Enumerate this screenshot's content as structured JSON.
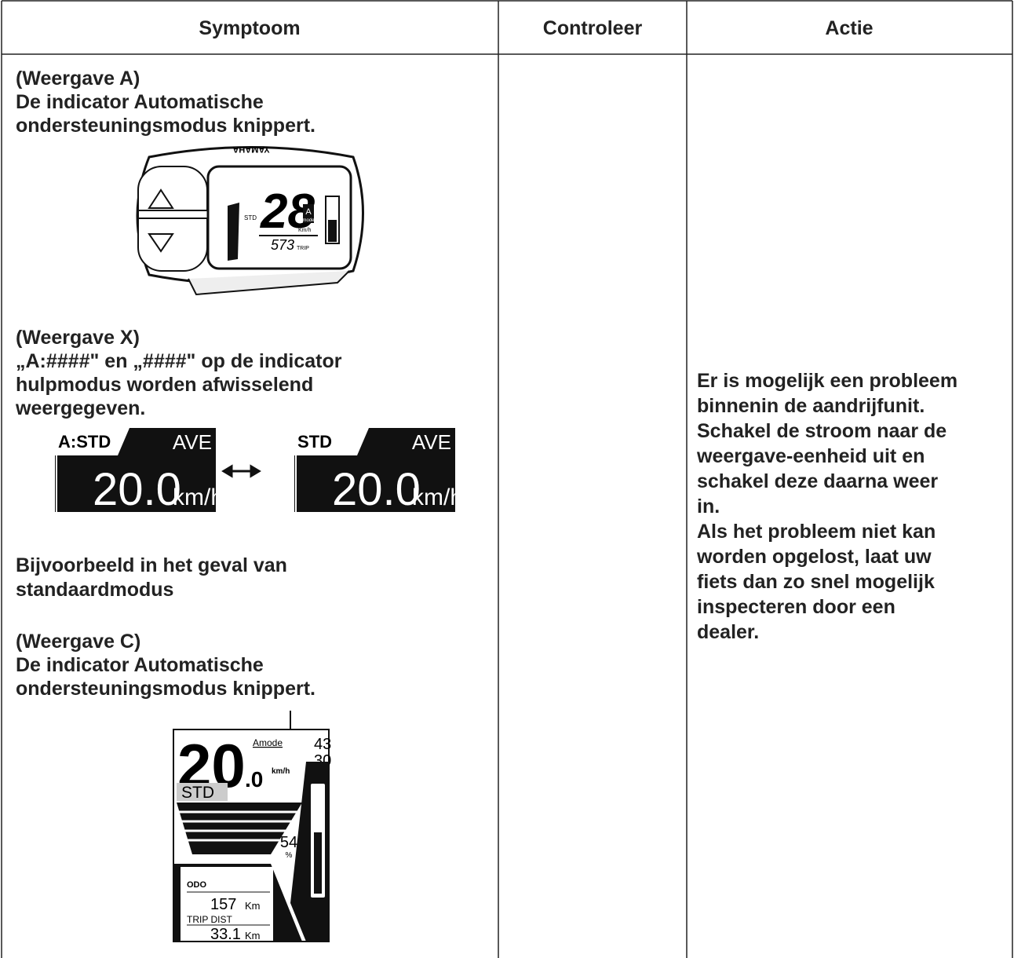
{
  "header": {
    "columns": [
      "Symptoom",
      "Controleer",
      "Actie"
    ]
  },
  "symptom": {
    "display_a": {
      "label": "(Weergave A)",
      "lines": [
        "De indicator Automatische",
        "ondersteuningsmodus knippert."
      ]
    },
    "display_x": {
      "label": "(Weergave X)",
      "lines": [
        "„A:####\" en „####\" op de indicator",
        "hulpmodus worden afwisselend",
        "weergegeven."
      ]
    },
    "example": {
      "lines": [
        "Bijvoorbeeld in het geval van",
        "standaardmodus"
      ]
    },
    "display_c": {
      "label": "(Weergave C)",
      "lines": [
        "De indicator Automatische",
        "ondersteuningsmodus knippert."
      ]
    }
  },
  "action": {
    "lines": [
      "Er is mogelijk een probleem",
      "binnenin de aandrijfunit.",
      "Schakel de stroom naar de",
      "weergave-eenheid uit en",
      "schakel deze daarna weer",
      "in.",
      "Als het probleem niet kan",
      "worden opgelost, laat uw",
      "fiets dan zo snel mogelijk",
      "inspecteren door een",
      "dealer."
    ]
  },
  "illustrations": {
    "unit_a": {
      "brand": "YAMAHA",
      "mode": "STD",
      "speed": "28",
      "assist": "A",
      "assist_sub": "mode",
      "unit": "Km/h",
      "trip": "573",
      "trip_label": "TRIP"
    },
    "display_x": {
      "before": {
        "mode": "A:STD",
        "label": "AVE",
        "speed": "20.0",
        "unit": "km/h"
      },
      "after": {
        "mode": "STD",
        "label": "AVE",
        "speed": "20.0",
        "unit": "km/h"
      }
    },
    "display_c": {
      "speed": "20",
      "decimal": ".0",
      "assist": "Amode",
      "unit": "km/h",
      "range_top": "43",
      "range_bottom": "30",
      "mode": "STD",
      "battery": "54",
      "battery_unit": "%",
      "odo_label": "ODO",
      "odo": "157",
      "odo_unit": "Km",
      "trip_label": "TRIP DIST",
      "trip": "33.1",
      "trip_unit": "Km"
    }
  }
}
